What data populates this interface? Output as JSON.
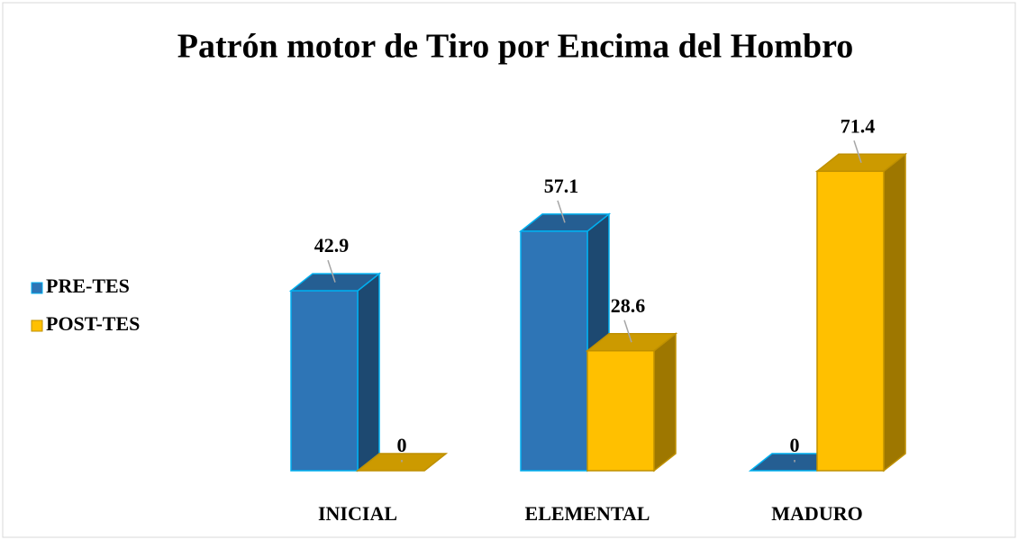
{
  "chart_data": {
    "type": "bar3d",
    "title": "Patrón motor de Tiro por Encima del Hombro",
    "categories": [
      "INICIAL",
      "ELEMENTAL",
      "MADURO"
    ],
    "series": [
      {
        "name": "PRE-TES",
        "color": "#2e75b6",
        "values": [
          42.9,
          57.1,
          0
        ]
      },
      {
        "name": "POST-TES",
        "color": "#ffc000",
        "values": [
          0,
          28.6,
          71.4
        ]
      }
    ],
    "legend": "left"
  }
}
